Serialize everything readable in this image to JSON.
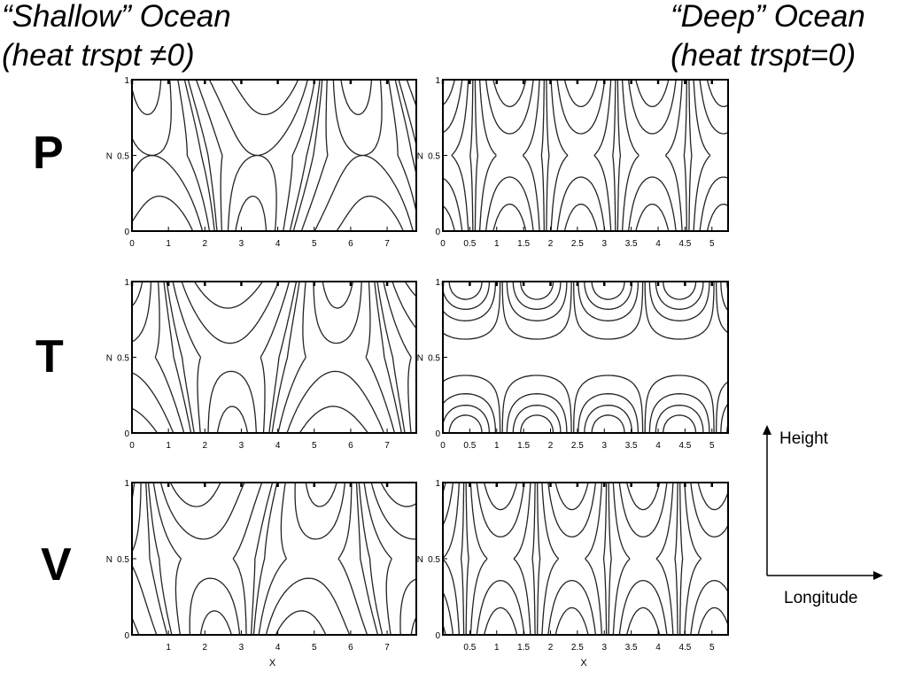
{
  "titles": {
    "left": [
      "“Shallow” Ocean",
      "(heat trspt ≠0)"
    ],
    "right": [
      "“Deep” Ocean",
      "(heat trspt=0)"
    ]
  },
  "row_labels": [
    "P",
    "T",
    "V"
  ],
  "panel_ylabel": "N",
  "panel_xlabel": "X",
  "yticks": [
    "0",
    "0.5",
    "1"
  ],
  "xticks_shallow": [
    "0",
    "1",
    "2",
    "3",
    "4",
    "5",
    "6",
    "7"
  ],
  "xticks_deep": [
    "0",
    "0.5",
    "1",
    "1.5",
    "2",
    "2.5",
    "3",
    "3.5",
    "4",
    "4.5",
    "5"
  ],
  "xticks_shallow_bottom": [
    "1",
    "2",
    "3",
    "4",
    "5",
    "6",
    "7"
  ],
  "xticks_deep_bottom": [
    "0.5",
    "1",
    "1.5",
    "2",
    "2.5",
    "3",
    "3.5",
    "4",
    "4.5",
    "5"
  ],
  "axes_legend": {
    "vertical": "Height",
    "horizontal": "Longitude"
  },
  "chart_data": [
    {
      "type": "contour",
      "panel": "P shallow",
      "xlim": [
        0,
        7.8
      ],
      "ylim": [
        0,
        1
      ]
    },
    {
      "type": "contour",
      "panel": "P deep",
      "xlim": [
        0,
        5.3
      ],
      "ylim": [
        0,
        1
      ]
    },
    {
      "type": "contour",
      "panel": "T shallow",
      "xlim": [
        0,
        7.8
      ],
      "ylim": [
        0,
        1
      ]
    },
    {
      "type": "contour",
      "panel": "T deep",
      "xlim": [
        0,
        5.3
      ],
      "ylim": [
        0,
        1
      ]
    },
    {
      "type": "contour",
      "panel": "V shallow",
      "xlim": [
        0,
        7.8
      ],
      "ylim": [
        0,
        1
      ]
    },
    {
      "type": "contour",
      "panel": "V deep",
      "xlim": [
        0,
        5.3
      ],
      "ylim": [
        0,
        1
      ]
    }
  ]
}
